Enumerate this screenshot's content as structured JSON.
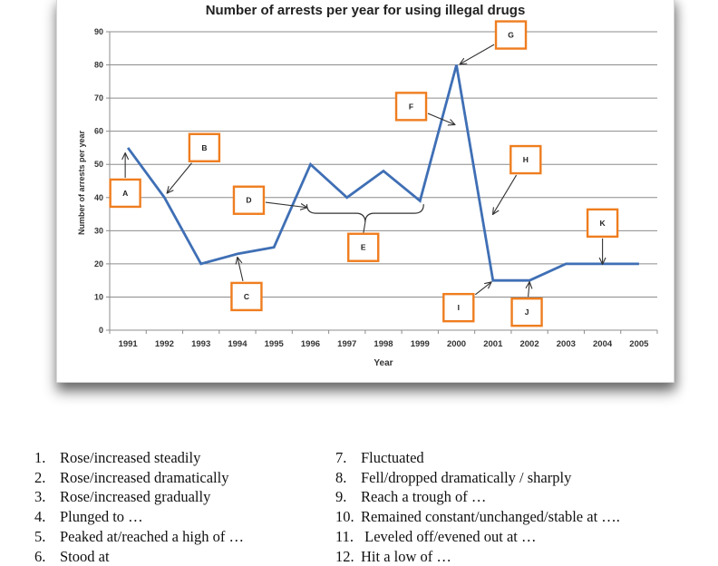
{
  "chart_data": {
    "type": "line",
    "title": "Number of arrests per year for using illegal drugs",
    "xlabel": "Year",
    "ylabel": "Number of arrests per year",
    "categories": [
      "1991",
      "1992",
      "1993",
      "1994",
      "1995",
      "1996",
      "1997",
      "1998",
      "1999",
      "2000",
      "2001",
      "2002",
      "2003",
      "2004",
      "2005"
    ],
    "series": [
      {
        "values": [
          55,
          40,
          20,
          23,
          25,
          50,
          40,
          48,
          39,
          80,
          15,
          15,
          20,
          20,
          20
        ]
      }
    ],
    "yticks": [
      "0",
      "10",
      "20",
      "30",
      "40",
      "50",
      "60",
      "70",
      "80",
      "90"
    ],
    "ylim": [
      0,
      90
    ],
    "grid": true,
    "legend": "none",
    "line_color": "#3f6fb5",
    "box_color": "#ef7d1f",
    "annotations": [
      {
        "label": "A",
        "year": "1991",
        "value": 55
      },
      {
        "label": "B",
        "year": "1992",
        "value": 40
      },
      {
        "label": "C",
        "year": "1994",
        "value": 23
      },
      {
        "label": "D",
        "year": "1996",
        "value": 37
      },
      {
        "label": "E",
        "year": "1997",
        "value": 37
      },
      {
        "label": "F",
        "year": "2000",
        "value": 62
      },
      {
        "label": "G",
        "year": "2000",
        "value": 80
      },
      {
        "label": "H",
        "year": "2001",
        "value": 35
      },
      {
        "label": "I",
        "year": "2001",
        "value": 15
      },
      {
        "label": "J",
        "year": "2002",
        "value": 15
      },
      {
        "label": "K",
        "year": "2004",
        "value": 20
      }
    ]
  },
  "terms_left": [
    {
      "num": "1.",
      "text": "Rose/increased steadily"
    },
    {
      "num": "2.",
      "text": "Rose/increased dramatically"
    },
    {
      "num": "3.",
      "text": "Rose/increased gradually"
    },
    {
      "num": "4.",
      "text": "Plunged to …"
    },
    {
      "num": "5.",
      "text": "Peaked at/reached a high of …"
    },
    {
      "num": "6.",
      "text": "Stood at"
    }
  ],
  "terms_right": [
    {
      "num": "7.",
      "text": "Fluctuated"
    },
    {
      "num": "8.",
      "text": "Fell/dropped dramatically / sharply"
    },
    {
      "num": "9.",
      "text": "Reach a trough of …"
    },
    {
      "num": "10.",
      "text": "Remained constant/unchanged/stable at …."
    },
    {
      "num": "11.",
      "text": " Leveled off/evened out at …"
    },
    {
      "num": "12.",
      "text": "Hit a low of …"
    }
  ]
}
